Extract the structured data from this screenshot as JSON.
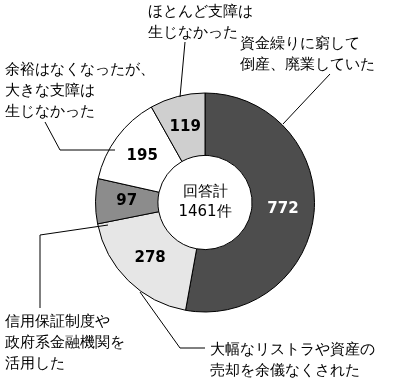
{
  "chart_data": {
    "type": "doughnut",
    "categories": [
      "資金繰りに窮して\n倒産、廃業していた",
      "大幅なリストラや資産の\n売却を余儀なくされた",
      "信用保証制度や\n政府系金融機関を\n活用した",
      "余裕はなくなったが、\n大きな支障は\n生じなかった",
      "ほとんど支障は\n生じなかった"
    ],
    "values": [
      772,
      278,
      97,
      195,
      119
    ],
    "colors": [
      "#4d4d4d",
      "#e6e6e6",
      "#8c8c8c",
      "#ffffff",
      "#cfcfcf"
    ],
    "data_labels": true,
    "center_text": [
      "回答計",
      "1461件"
    ]
  }
}
